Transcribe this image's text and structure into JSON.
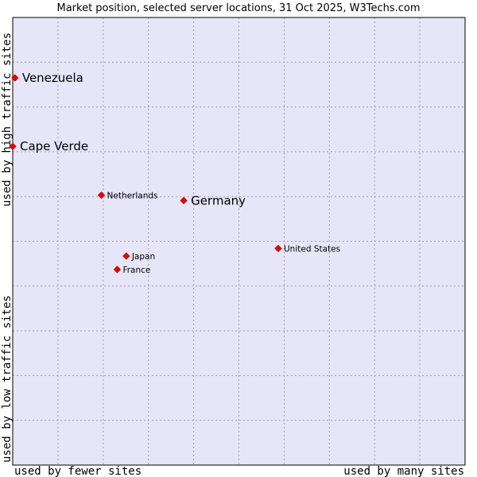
{
  "chart_data": {
    "type": "scatter",
    "title": "Market position, selected server locations, 31 Oct 2025, W3Techs.com",
    "xlabel_left": "used by fewer sites",
    "xlabel_right": "used by many sites",
    "ylabel_bottom": "used by low traffic sites",
    "ylabel_top": "used by high traffic sites",
    "xlim": [
      0,
      10
    ],
    "ylim": [
      0,
      10
    ],
    "grid": true,
    "colors": {
      "plot_bg": "#e6e6f8",
      "grid": "#9a9ab8",
      "frame": "#000000",
      "point": "#ee0000"
    },
    "points": [
      {
        "label": "Venezuela",
        "x": 0.05,
        "y": 8.65,
        "size": "large"
      },
      {
        "label": "Cape Verde",
        "x": 0.0,
        "y": 7.12,
        "size": "large"
      },
      {
        "label": "Netherlands",
        "x": 1.96,
        "y": 6.03,
        "size": "small"
      },
      {
        "label": "Germany",
        "x": 3.78,
        "y": 5.91,
        "size": "large"
      },
      {
        "label": "United States",
        "x": 5.87,
        "y": 4.84,
        "size": "small"
      },
      {
        "label": "Japan",
        "x": 2.51,
        "y": 4.67,
        "size": "small"
      },
      {
        "label": "France",
        "x": 2.31,
        "y": 4.37,
        "size": "small"
      }
    ]
  }
}
